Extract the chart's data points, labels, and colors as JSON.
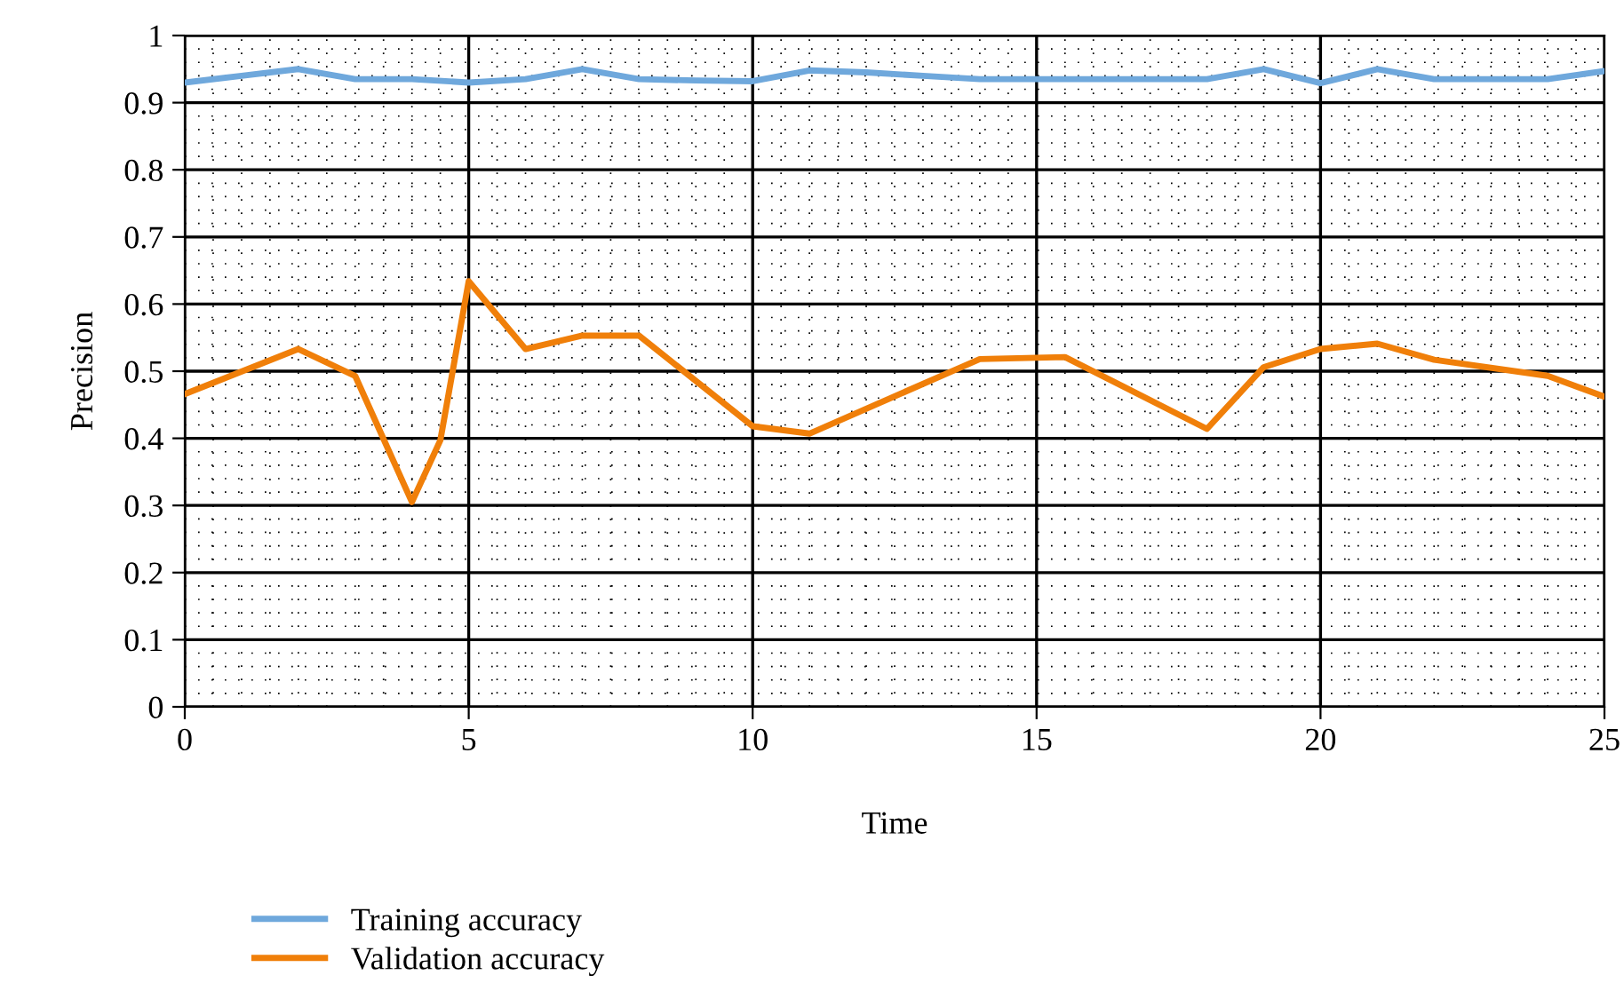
{
  "chart_data": {
    "type": "line",
    "xlabel": "Time",
    "ylabel": "Precision",
    "xlim": [
      0,
      25
    ],
    "xticks": [
      0,
      5,
      10,
      15,
      20,
      25
    ],
    "ylim": [
      0,
      1
    ],
    "yticks": [
      0,
      0.1,
      0.2,
      0.3,
      0.4,
      0.5,
      0.6,
      0.7,
      0.8,
      0.9,
      1
    ],
    "grid": true,
    "legend": "bottom left",
    "marker": "none",
    "line_style": "solid",
    "series": [
      {
        "name": "Training accuracy",
        "color": "#6fa8dc",
        "x": [
          0,
          1,
          2,
          3,
          4,
          5,
          6,
          7,
          8,
          9,
          10,
          11,
          12,
          13,
          14,
          15,
          16,
          17,
          18,
          19,
          20,
          21,
          22,
          23,
          24,
          25
        ],
        "values": [
          0.93,
          0.94,
          0.95,
          0.935,
          0.935,
          0.93,
          0.935,
          0.95,
          0.935,
          0.933,
          0.932,
          0.948,
          0.945,
          0.94,
          0.935,
          0.935,
          0.935,
          0.935,
          0.935,
          0.95,
          0.929,
          0.95,
          0.935,
          0.935,
          0.935,
          0.947
        ]
      },
      {
        "name": "Validation accuracy",
        "color": "#f07f09",
        "x": [
          0,
          2,
          3,
          4,
          4.5,
          5,
          6,
          7,
          8,
          10,
          11,
          14,
          15.5,
          18,
          19,
          20,
          21,
          22,
          24,
          25
        ],
        "values": [
          0.466,
          0.533,
          0.493,
          0.305,
          0.397,
          0.634,
          0.533,
          0.553,
          0.553,
          0.418,
          0.407,
          0.518,
          0.521,
          0.414,
          0.506,
          0.533,
          0.541,
          0.517,
          0.493,
          0.462
        ]
      }
    ]
  }
}
